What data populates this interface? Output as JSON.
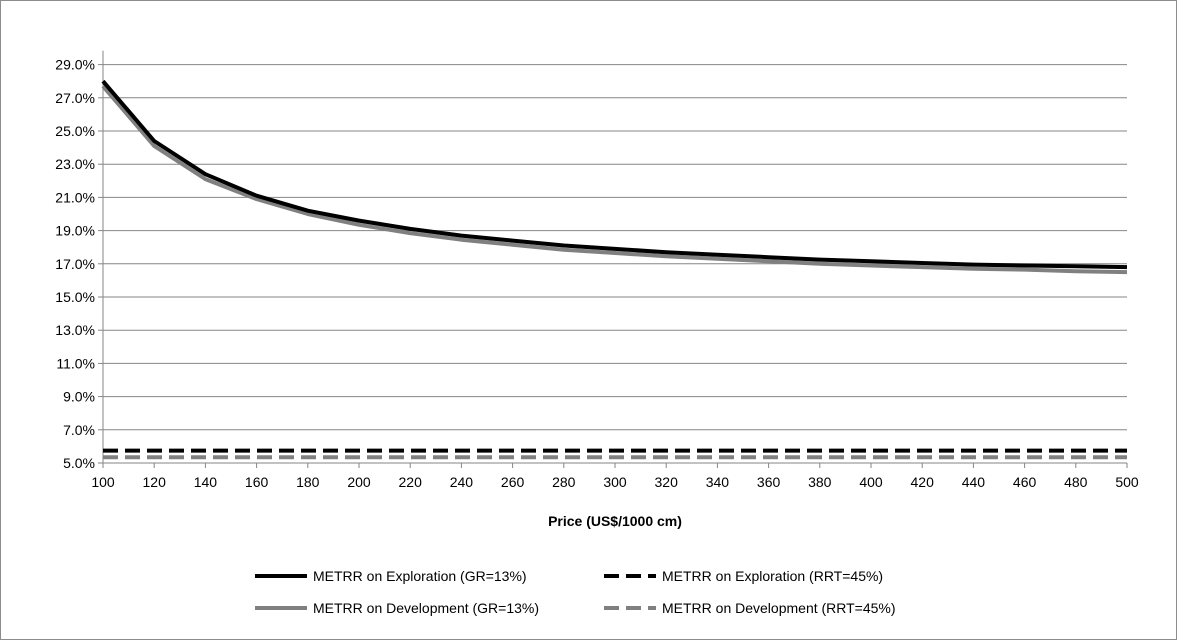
{
  "chart_data": {
    "type": "line",
    "title": "",
    "xlabel": "Price (US$/1000 cm)",
    "ylabel": "",
    "x": [
      100,
      120,
      140,
      160,
      180,
      200,
      220,
      240,
      260,
      280,
      300,
      320,
      340,
      360,
      380,
      400,
      420,
      440,
      460,
      480,
      500
    ],
    "xlim": [
      100,
      500
    ],
    "ylim": [
      5.0,
      30.0
    ],
    "x_ticks": [
      "100",
      "120",
      "140",
      "160",
      "180",
      "200",
      "220",
      "240",
      "260",
      "280",
      "300",
      "320",
      "340",
      "360",
      "380",
      "400",
      "420",
      "440",
      "460",
      "480",
      "500"
    ],
    "y_ticks": [
      "5.0%",
      "7.0%",
      "9.0%",
      "11.0%",
      "13.0%",
      "15.0%",
      "17.0%",
      "19.0%",
      "21.0%",
      "23.0%",
      "25.0%",
      "27.0%",
      "29.0%"
    ],
    "y_tick_values": [
      5,
      7,
      9,
      11,
      13,
      15,
      17,
      19,
      21,
      23,
      25,
      27,
      29
    ],
    "grid": "horizontal",
    "legend_position": "bottom",
    "series": [
      {
        "name": "METRR on Exploration (GR=13%)",
        "color": "#000000",
        "dash": "solid",
        "values": [
          28.0,
          24.4,
          22.4,
          21.1,
          20.2,
          19.6,
          19.1,
          18.7,
          18.4,
          18.1,
          17.9,
          17.7,
          17.55,
          17.4,
          17.25,
          17.15,
          17.05,
          16.95,
          16.9,
          16.85,
          16.8
        ]
      },
      {
        "name": "METRR on Exploration (RRT=45%)",
        "color": "#000000",
        "dash": "dashed",
        "values": [
          5.75,
          5.75,
          5.75,
          5.75,
          5.75,
          5.75,
          5.75,
          5.75,
          5.75,
          5.75,
          5.75,
          5.75,
          5.75,
          5.75,
          5.75,
          5.75,
          5.75,
          5.75,
          5.75,
          5.75,
          5.75
        ]
      },
      {
        "name": "METRR on Development (GR=13%)",
        "color": "#808080",
        "dash": "solid",
        "values": [
          27.7,
          24.1,
          22.1,
          20.9,
          20.0,
          19.35,
          18.85,
          18.45,
          18.15,
          17.85,
          17.65,
          17.45,
          17.3,
          17.15,
          17.0,
          16.9,
          16.8,
          16.7,
          16.65,
          16.55,
          16.5
        ]
      },
      {
        "name": "METRR on Development (RRT=45%)",
        "color": "#808080",
        "dash": "dashed",
        "values": [
          5.35,
          5.35,
          5.35,
          5.35,
          5.35,
          5.35,
          5.35,
          5.35,
          5.35,
          5.35,
          5.35,
          5.35,
          5.35,
          5.35,
          5.35,
          5.35,
          5.35,
          5.35,
          5.35,
          5.35,
          5.35
        ]
      }
    ]
  }
}
